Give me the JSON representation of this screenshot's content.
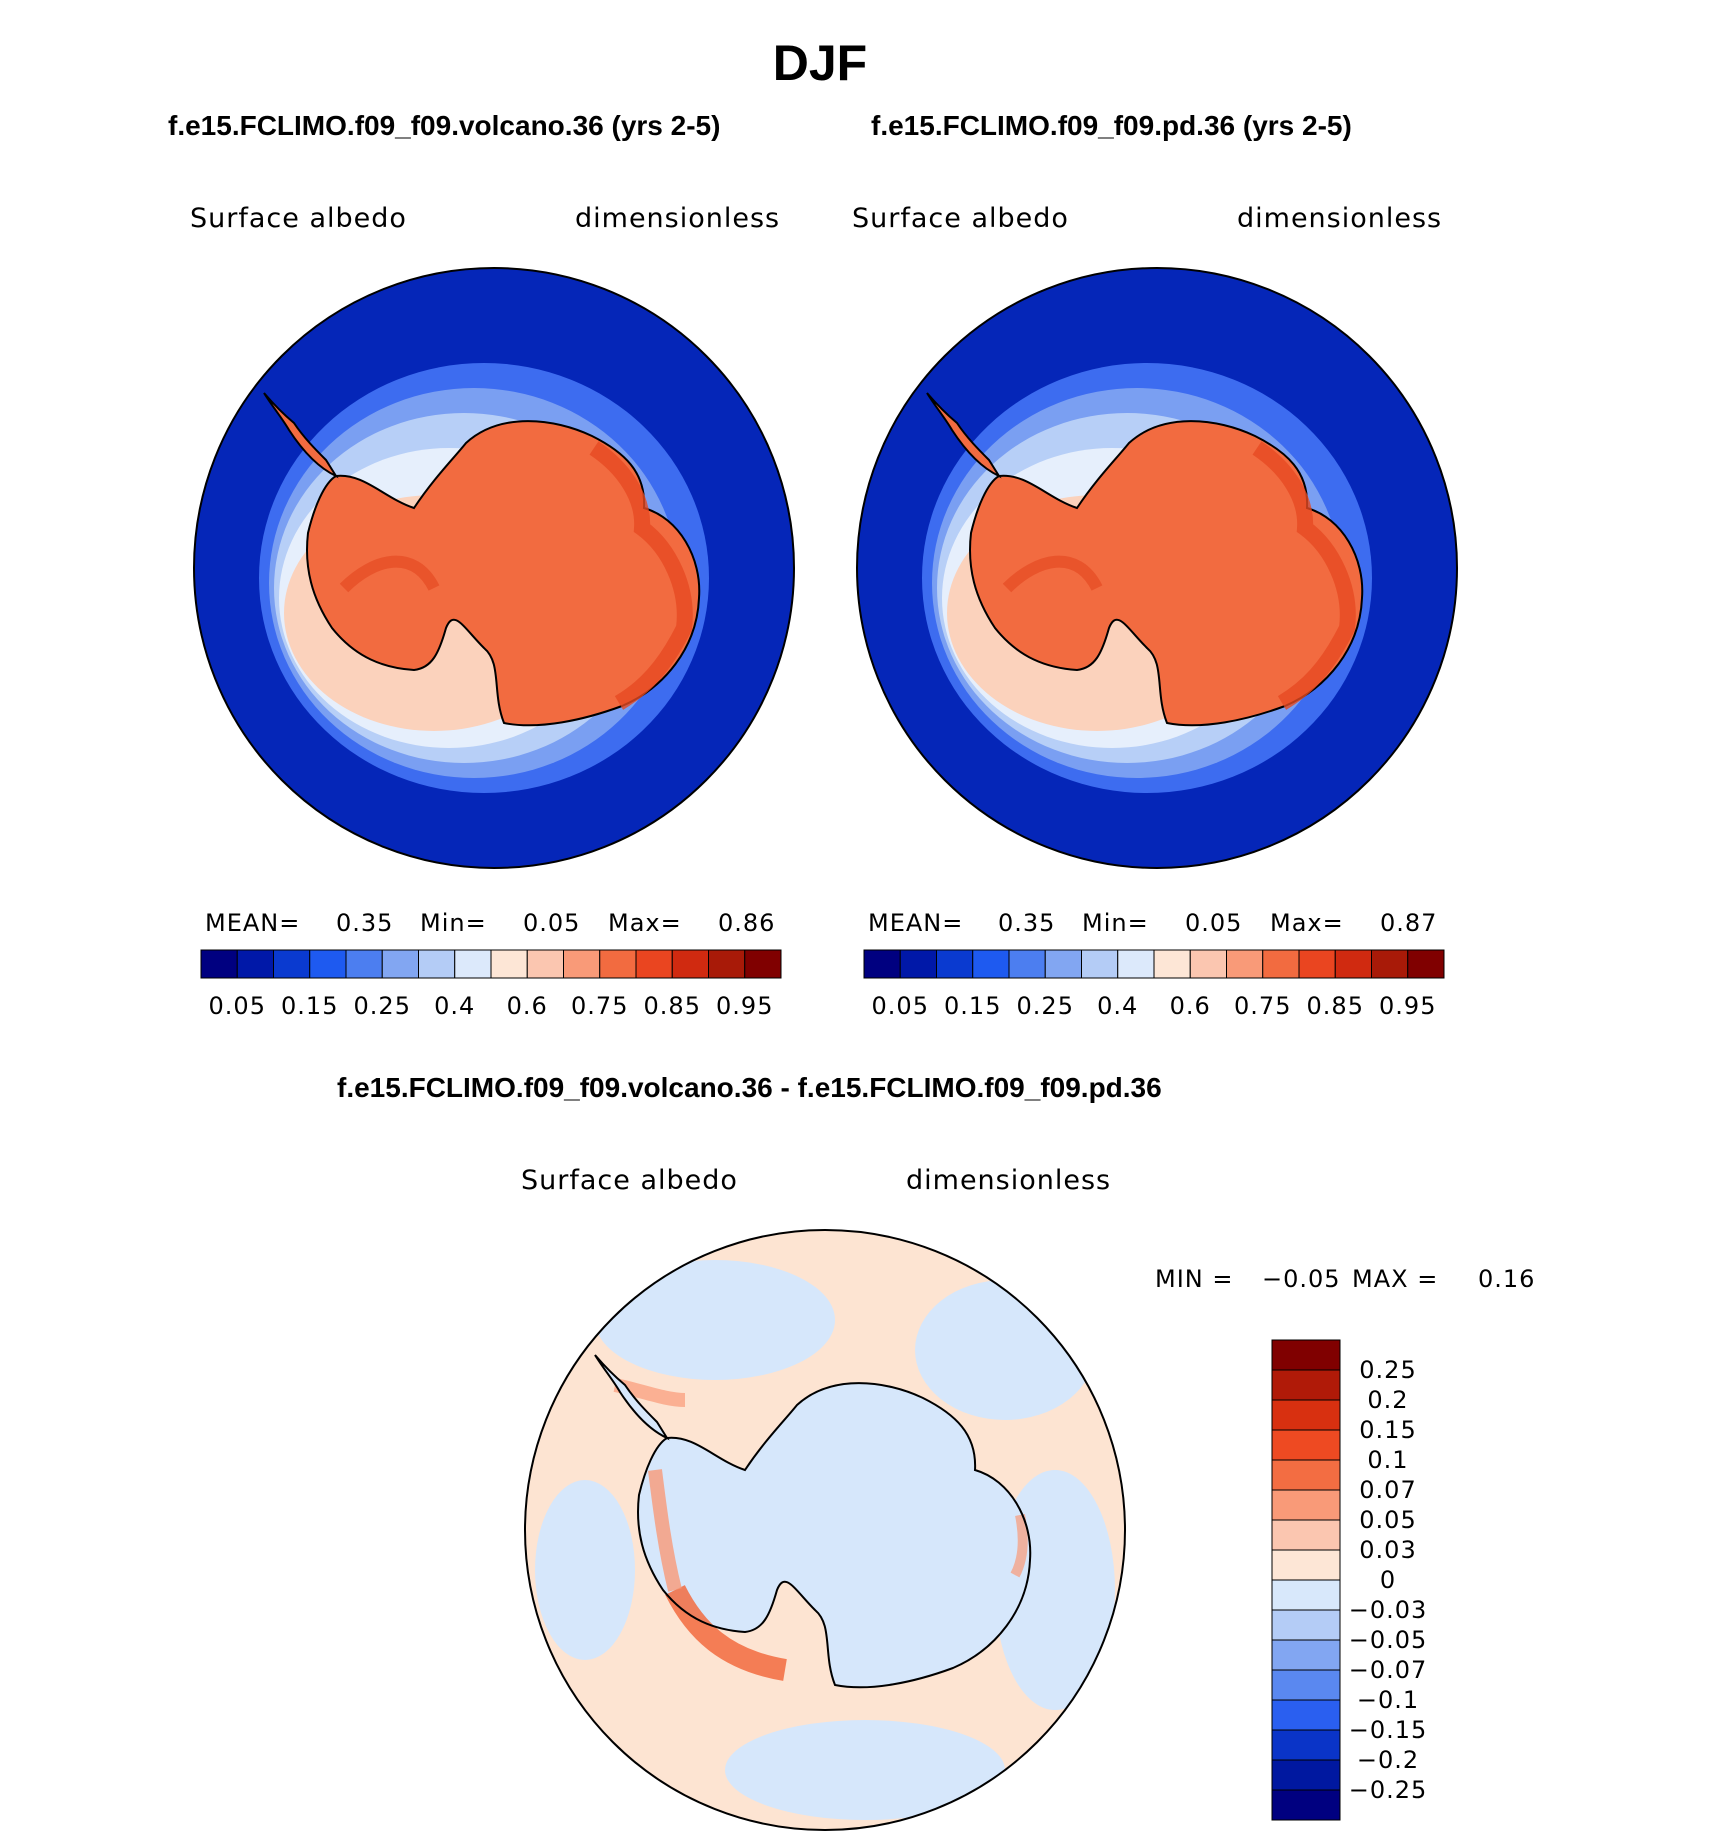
{
  "page_title": "DJF",
  "colors": {
    "ocean_deep": "#0526b8",
    "continent": "#f26b40",
    "coast_line": "#000000",
    "diff_pos": "#fde4d2",
    "diff_neg": "#d6e7fb"
  },
  "panels": [
    {
      "title": "f.e15.FCLIMO.f09_f09.volcano.36 (yrs 2-5)",
      "left_label": "Surface albedo",
      "right_label": "dimensionless",
      "stats": {
        "mean_label": "MEAN=",
        "mean": "0.35",
        "min_label": "Min=",
        "min": "0.05",
        "max_label": "Max=",
        "max": "0.86"
      }
    },
    {
      "title": "f.e15.FCLIMO.f09_f09.pd.36 (yrs 2-5)",
      "left_label": "Surface albedo",
      "right_label": "dimensionless",
      "stats": {
        "mean_label": "MEAN=",
        "mean": "0.35",
        "min_label": "Min=",
        "min": "0.05",
        "max_label": "Max=",
        "max": "0.87"
      }
    }
  ],
  "diff_panel": {
    "title": "f.e15.FCLIMO.f09_f09.volcano.36 - f.e15.FCLIMO.f09_f09.pd.36",
    "left_label": "Surface albedo",
    "right_label": "dimensionless",
    "stats": {
      "min_label": "MIN =",
      "min": "−0.05",
      "max_label": "MAX =",
      "max": "0.16"
    }
  },
  "chart_data": [
    {
      "type": "heatmap",
      "projection": "south-polar-stereographic",
      "title": "f.e15.FCLIMO.f09_f09.volcano.36 (yrs 2-5)",
      "variable": "Surface albedo",
      "units": "dimensionless",
      "mean": 0.35,
      "min": 0.05,
      "max": 0.86,
      "levels": [
        0.05,
        0.1,
        0.15,
        0.2,
        0.25,
        0.3,
        0.4,
        0.5,
        0.6,
        0.7,
        0.75,
        0.8,
        0.85,
        0.9,
        0.95
      ],
      "colorbar_labels": [
        "0.05",
        "0.15",
        "0.25",
        "0.4",
        "0.6",
        "0.75",
        "0.85",
        "0.95"
      ],
      "colors": [
        "#000080",
        "#0018a8",
        "#0a3ad0",
        "#1e5af0",
        "#4c7ef0",
        "#82a6f2",
        "#b4ccf6",
        "#dce9fb",
        "#fde6d6",
        "#fbc6b0",
        "#f99a78",
        "#f26b40",
        "#ea4520",
        "#d02a10",
        "#a81a08",
        "#800000"
      ]
    },
    {
      "type": "heatmap",
      "projection": "south-polar-stereographic",
      "title": "f.e15.FCLIMO.f09_f09.pd.36 (yrs 2-5)",
      "variable": "Surface albedo",
      "units": "dimensionless",
      "mean": 0.35,
      "min": 0.05,
      "max": 0.87,
      "levels": [
        0.05,
        0.1,
        0.15,
        0.2,
        0.25,
        0.3,
        0.4,
        0.5,
        0.6,
        0.7,
        0.75,
        0.8,
        0.85,
        0.9,
        0.95
      ],
      "colorbar_labels": [
        "0.05",
        "0.15",
        "0.25",
        "0.4",
        "0.6",
        "0.75",
        "0.85",
        "0.95"
      ],
      "colors": [
        "#000080",
        "#0018a8",
        "#0a3ad0",
        "#1e5af0",
        "#4c7ef0",
        "#82a6f2",
        "#b4ccf6",
        "#dce9fb",
        "#fde6d6",
        "#fbc6b0",
        "#f99a78",
        "#f26b40",
        "#ea4520",
        "#d02a10",
        "#a81a08",
        "#800000"
      ]
    },
    {
      "type": "heatmap",
      "projection": "south-polar-stereographic",
      "title": "f.e15.FCLIMO.f09_f09.volcano.36 - f.e15.FCLIMO.f09_f09.pd.36",
      "variable": "Surface albedo",
      "units": "dimensionless",
      "min": -0.05,
      "max": 0.16,
      "colorbar_labels": [
        "0.25",
        "0.2",
        "0.15",
        "0.1",
        "0.07",
        "0.05",
        "0.03",
        "0",
        "−0.03",
        "−0.05",
        "−0.07",
        "−0.1",
        "−0.15",
        "−0.2",
        "−0.25"
      ],
      "colors": [
        "#800000",
        "#b01a08",
        "#d83010",
        "#ee4a22",
        "#f36d42",
        "#f99a78",
        "#fbc6b0",
        "#fde6d6",
        "#d8e8fb",
        "#b4ccf6",
        "#82a6f2",
        "#5a88f0",
        "#2a5ff0",
        "#0a34c8",
        "#0018a0",
        "#000080"
      ]
    }
  ]
}
